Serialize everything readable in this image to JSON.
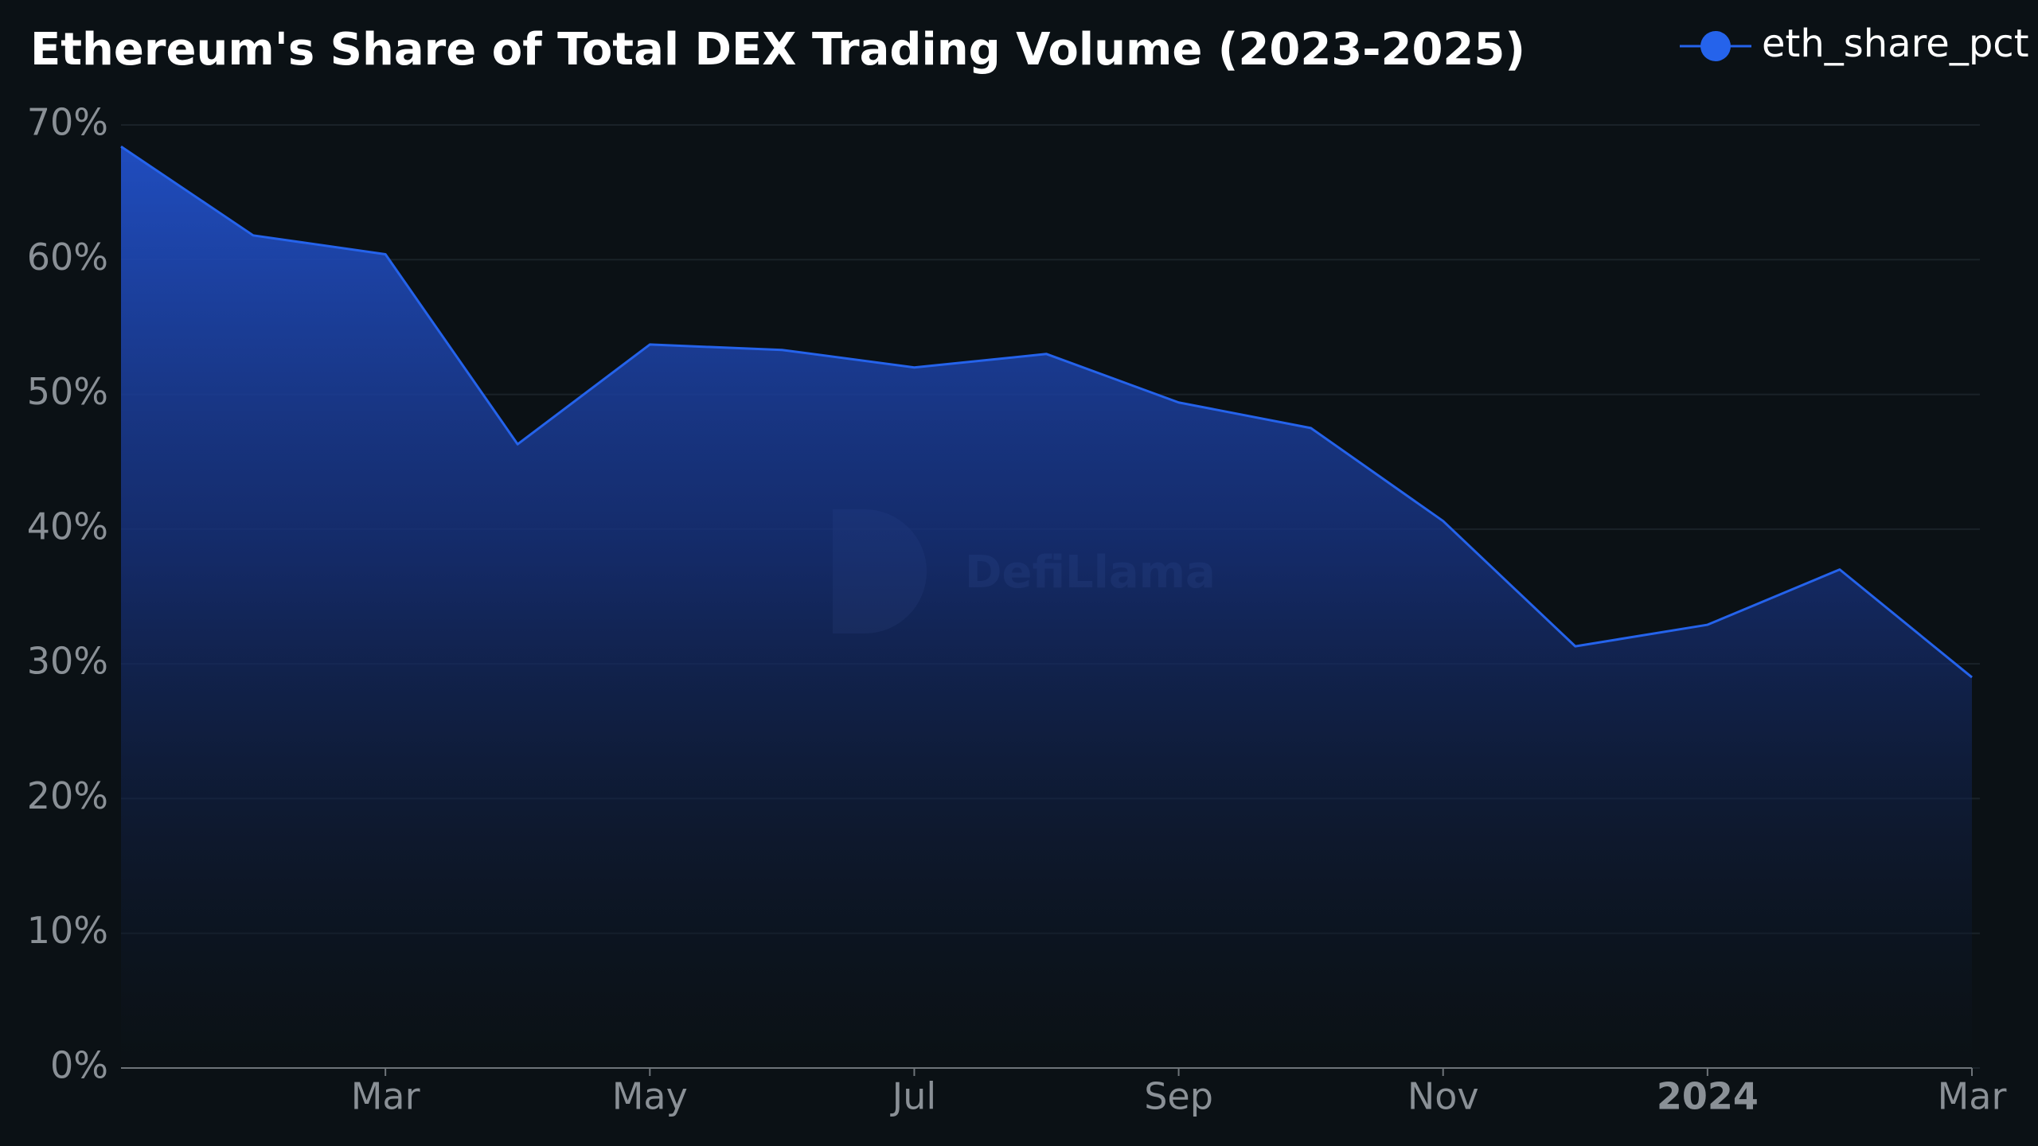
{
  "chart_data": {
    "type": "area",
    "title": "Ethereum's Share of Total DEX Trading Volume (2023-2025)",
    "watermark": "DefiLlama",
    "categories": [
      null,
      null,
      "Mar",
      null,
      "May",
      null,
      "Jul",
      null,
      "Sep",
      null,
      "Nov",
      null,
      "2024",
      null,
      "Mar"
    ],
    "series": [
      {
        "name": "eth_share_pct",
        "color": "#2563eb",
        "values": [
          68.4,
          61.8,
          60.4,
          46.3,
          53.7,
          53.3,
          52.0,
          53.0,
          49.4,
          47.5,
          40.6,
          31.3,
          32.9,
          37.0,
          29.0
        ]
      }
    ],
    "ylim": [
      0,
      70
    ],
    "yticks": [
      {
        "value": 0,
        "label": "0%"
      },
      {
        "value": 10,
        "label": "10%"
      },
      {
        "value": 20,
        "label": "20%"
      },
      {
        "value": 30,
        "label": "30%"
      },
      {
        "value": 40,
        "label": "40%"
      },
      {
        "value": 50,
        "label": "50%"
      },
      {
        "value": 60,
        "label": "60%"
      },
      {
        "value": 70,
        "label": "70%"
      }
    ],
    "grid": true,
    "legend": "top-right"
  }
}
